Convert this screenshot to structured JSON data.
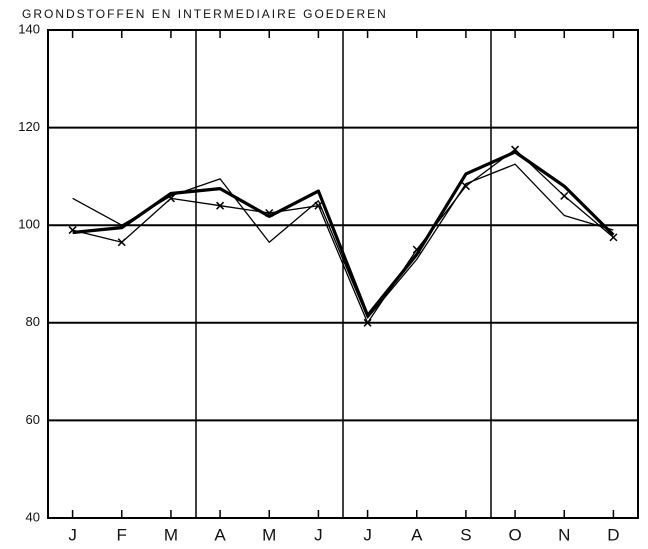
{
  "chart_data": {
    "type": "line",
    "title": "GRONDSTOFFEN EN INTERMEDIAIRE GOEDEREN",
    "categories": [
      "J",
      "F",
      "M",
      "A",
      "M",
      "J",
      "J",
      "A",
      "S",
      "O",
      "N",
      "D"
    ],
    "series": [
      {
        "color": "#000000",
        "values": [
          98.5,
          99.5,
          106.5,
          107.5,
          101.8,
          107,
          81.5,
          94,
          110.5,
          115,
          108,
          98
        ]
      },
      {
        "color": "#000000",
        "values": [
          105.5,
          100,
          106,
          109.5,
          96.5,
          105,
          81,
          93,
          108.5,
          112.5,
          102,
          99
        ]
      },
      {
        "color": "#000000",
        "values": [
          99,
          96.5,
          105.5,
          104,
          102.5,
          104,
          80,
          95,
          108,
          115.5,
          106,
          97.5
        ]
      }
    ],
    "ylim": [
      40,
      140
    ],
    "yticks": [
      40,
      60,
      80,
      100,
      120,
      140
    ],
    "grid": true
  }
}
